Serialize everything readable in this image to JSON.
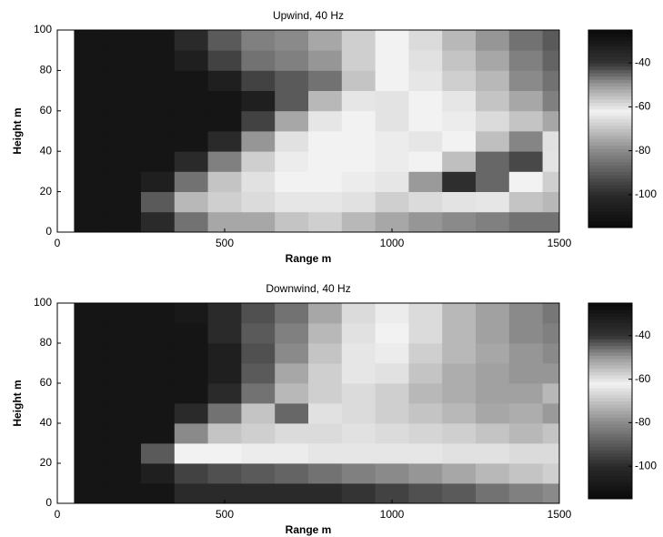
{
  "chart_data": [
    {
      "type": "heatmap",
      "title": "Upwind, 40 Hz",
      "xlabel": "Range m",
      "ylabel": "Height m",
      "xedges": [
        0,
        50,
        150,
        250,
        350,
        450,
        550,
        650,
        750,
        850,
        950,
        1050,
        1150,
        1250,
        1350,
        1450,
        1500
      ],
      "yedges": [
        0,
        10,
        20,
        30,
        40,
        50,
        60,
        70,
        80,
        90,
        100
      ],
      "z": [
        [
          null,
          -110,
          -110,
          -100,
          -85,
          -75,
          -75,
          -70,
          -68,
          -72,
          -75,
          -78,
          -80,
          -82,
          -85,
          -85
        ],
        [
          null,
          -110,
          -110,
          -90,
          -72,
          -68,
          -66,
          -64,
          -64,
          -65,
          -68,
          -66,
          -60,
          -64,
          -70,
          -72
        ],
        [
          null,
          -110,
          -110,
          -105,
          -85,
          -70,
          -65,
          -62,
          -62,
          -63,
          -64,
          -50,
          -38,
          -45,
          -62,
          -68
        ],
        [
          null,
          -110,
          -110,
          -110,
          -100,
          -82,
          -68,
          -63,
          -62,
          -62,
          -63,
          -62,
          -55,
          -45,
          -42,
          -60
        ],
        [
          null,
          -110,
          -110,
          -110,
          -110,
          -100,
          -78,
          -65,
          -62,
          -62,
          -63,
          -64,
          -62,
          -55,
          -48,
          -65
        ],
        [
          null,
          -110,
          -110,
          -110,
          -110,
          -110,
          -95,
          -75,
          -64,
          -62,
          -60,
          -62,
          -63,
          -66,
          -70,
          -75
        ],
        [
          null,
          -110,
          -110,
          -110,
          -110,
          -110,
          -105,
          -90,
          -72,
          -64,
          -60,
          -62,
          -64,
          -70,
          -75,
          -82
        ],
        [
          null,
          -110,
          -110,
          -110,
          -110,
          -105,
          -95,
          -90,
          -85,
          -70,
          -62,
          -64,
          -68,
          -72,
          -80,
          -85
        ],
        [
          null,
          -110,
          -110,
          -110,
          -105,
          -95,
          -85,
          -82,
          -78,
          -68,
          -62,
          -65,
          -70,
          -75,
          -82,
          -88
        ],
        [
          null,
          -110,
          -110,
          -110,
          -100,
          -90,
          -82,
          -80,
          -75,
          -68,
          -62,
          -66,
          -72,
          -78,
          -85,
          -90
        ]
      ],
      "xlim": [
        0,
        1500
      ],
      "xticks": [
        0,
        500,
        1000,
        1500
      ],
      "ylim": [
        0,
        100
      ],
      "yticks": [
        0,
        20,
        40,
        60,
        80,
        100
      ],
      "clim": [
        -115,
        -25
      ],
      "cticks": [
        -40,
        -60,
        -80,
        -100
      ],
      "colormap": [
        [
          -115,
          "#0a0a0a"
        ],
        [
          -100,
          "#2a2a2a"
        ],
        [
          -80,
          "#8a8a8a"
        ],
        [
          -62,
          "#f2f2f2"
        ],
        [
          -50,
          "#9a9a9a"
        ],
        [
          -40,
          "#333333"
        ],
        [
          -25,
          "#0a0a0a"
        ]
      ]
    },
    {
      "type": "heatmap",
      "title": "Downwind, 40 Hz",
      "xlabel": "Range m",
      "ylabel": "Height m",
      "xedges": [
        0,
        50,
        150,
        250,
        350,
        450,
        550,
        650,
        750,
        850,
        950,
        1050,
        1150,
        1250,
        1350,
        1450,
        1500
      ],
      "yedges": [
        0,
        10,
        20,
        30,
        40,
        50,
        60,
        70,
        80,
        90,
        100
      ],
      "z": [
        [
          null,
          -110,
          -110,
          -110,
          -100,
          -100,
          -100,
          -100,
          -100,
          -98,
          -95,
          -92,
          -90,
          -85,
          -82,
          -80
        ],
        [
          null,
          -110,
          -110,
          -105,
          -95,
          -92,
          -90,
          -88,
          -85,
          -82,
          -80,
          -78,
          -75,
          -72,
          -70,
          -68
        ],
        [
          null,
          -110,
          -110,
          -90,
          -62,
          -62,
          -63,
          -63,
          -64,
          -64,
          -64,
          -64,
          -65,
          -65,
          -66,
          -66
        ],
        [
          null,
          -110,
          -110,
          -110,
          -80,
          -70,
          -68,
          -66,
          -66,
          -65,
          -66,
          -67,
          -68,
          -70,
          -72,
          -70
        ],
        [
          null,
          -110,
          -110,
          -110,
          -100,
          -85,
          -70,
          -45,
          -65,
          -66,
          -68,
          -70,
          -72,
          -75,
          -74,
          -50
        ],
        [
          null,
          -110,
          -110,
          -110,
          -110,
          -100,
          -85,
          -72,
          -68,
          -66,
          -68,
          -72,
          -74,
          -76,
          -76,
          -72
        ],
        [
          null,
          -110,
          -110,
          -110,
          -110,
          -105,
          -90,
          -75,
          -68,
          -64,
          -65,
          -70,
          -74,
          -76,
          -78,
          -78
        ],
        [
          null,
          -110,
          -110,
          -110,
          -110,
          -105,
          -92,
          -80,
          -70,
          -64,
          -63,
          -68,
          -72,
          -75,
          -78,
          -80
        ],
        [
          null,
          -110,
          -110,
          -110,
          -110,
          -100,
          -90,
          -82,
          -72,
          -65,
          -62,
          -66,
          -72,
          -76,
          -80,
          -82
        ],
        [
          null,
          -110,
          -110,
          -110,
          -108,
          -100,
          -92,
          -85,
          -75,
          -66,
          -63,
          -66,
          -72,
          -76,
          -80,
          -84
        ]
      ],
      "xlim": [
        0,
        1500
      ],
      "xticks": [
        0,
        500,
        1000,
        1500
      ],
      "ylim": [
        0,
        100
      ],
      "yticks": [
        0,
        20,
        40,
        60,
        80,
        100
      ],
      "clim": [
        -115,
        -25
      ],
      "cticks": [
        -40,
        -60,
        -80,
        -100
      ],
      "colormap": [
        [
          -115,
          "#0a0a0a"
        ],
        [
          -100,
          "#2a2a2a"
        ],
        [
          -80,
          "#8a8a8a"
        ],
        [
          -62,
          "#f2f2f2"
        ],
        [
          -50,
          "#9a9a9a"
        ],
        [
          -40,
          "#333333"
        ],
        [
          -25,
          "#0a0a0a"
        ]
      ]
    }
  ]
}
